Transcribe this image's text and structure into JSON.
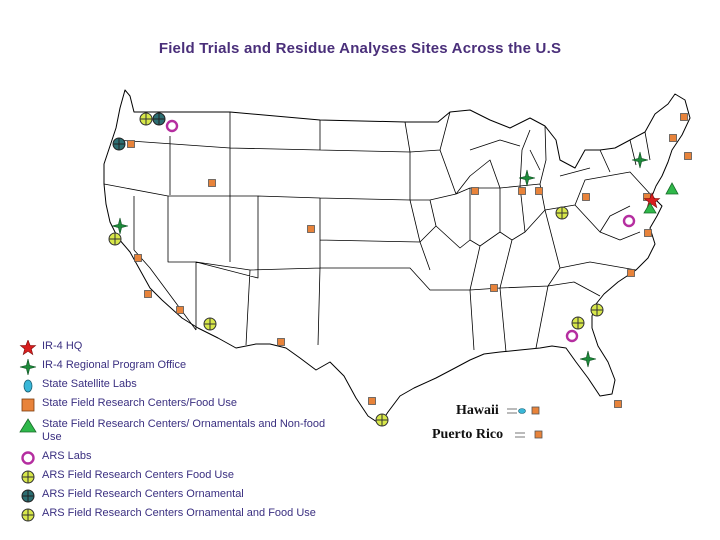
{
  "title": "Field Trials and Residue Analyses Sites Across the U.S",
  "colors": {
    "hq": "#d81e1e",
    "regional": "#1d8a3a",
    "satellite": "#39b7d8",
    "food": "#e8833a",
    "ornamental_food": "#d8e84a",
    "ars_lab": "#b52ea0",
    "ars_ornamental": "#2c6e72",
    "ornamental_triangle": "#2fb84a"
  },
  "legend": [
    {
      "icon": "red-star-icon",
      "label": "IR-4 HQ"
    },
    {
      "icon": "green-star-icon",
      "label": "IR-4 Regional Program Office"
    },
    {
      "icon": "cyan-oval-icon",
      "label": "State Satellite Labs"
    },
    {
      "icon": "orange-square-icon",
      "label": "State Field Research Centers/Food Use"
    },
    {
      "icon": "green-triangle-icon",
      "label": "State Field Research Centers/ Ornamentals and Non-food Use"
    },
    {
      "icon": "magenta-ring-icon",
      "label": "ARS Labs"
    },
    {
      "icon": "yellow-cross-circle-icon",
      "label": "ARS Field Research Centers Food Use"
    },
    {
      "icon": "teal-cross-circle-icon",
      "label": "ARS Field Research Centers Ornamental"
    },
    {
      "icon": "yellow-cross-circle-icon",
      "label": "ARS Field Research Centers Ornamental and Food Use"
    }
  ],
  "insets": {
    "hawaii": "Hawaii",
    "puerto_rico": "Puerto Rico"
  }
}
